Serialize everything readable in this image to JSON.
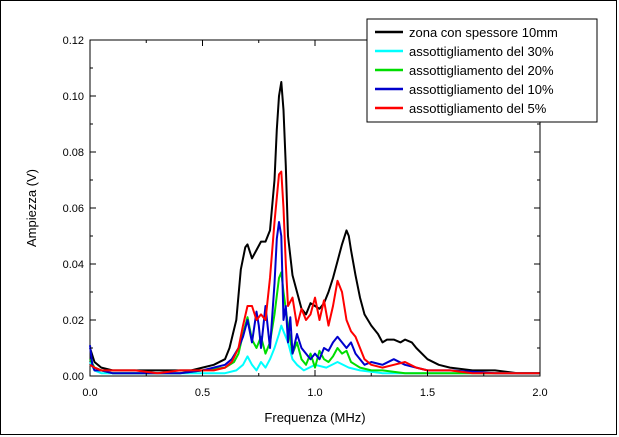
{
  "chart_data": {
    "type": "line",
    "xlabel": "Frequenza (MHz)",
    "ylabel": "Ampiezza (V)",
    "xlim": [
      0.0,
      2.0
    ],
    "ylim": [
      0.0,
      0.12
    ],
    "xticks": [
      "0.0",
      "0.5",
      "1.0",
      "1.5",
      "2.0"
    ],
    "yticks": [
      "0.00",
      "0.02",
      "0.04",
      "0.06",
      "0.08",
      "0.10",
      "0.12"
    ],
    "grid": false,
    "legend_position": "top-right",
    "series": [
      {
        "name": "zona con spessore 10mm",
        "color": "#000000",
        "x": [
          0.0,
          0.02,
          0.05,
          0.1,
          0.15,
          0.2,
          0.3,
          0.4,
          0.45,
          0.5,
          0.55,
          0.6,
          0.62,
          0.65,
          0.67,
          0.69,
          0.7,
          0.72,
          0.74,
          0.76,
          0.78,
          0.8,
          0.82,
          0.83,
          0.84,
          0.85,
          0.86,
          0.87,
          0.88,
          0.9,
          0.92,
          0.94,
          0.96,
          0.98,
          1.0,
          1.02,
          1.04,
          1.06,
          1.08,
          1.1,
          1.12,
          1.14,
          1.15,
          1.16,
          1.18,
          1.2,
          1.22,
          1.25,
          1.28,
          1.3,
          1.32,
          1.35,
          1.38,
          1.4,
          1.43,
          1.45,
          1.5,
          1.55,
          1.6,
          1.7,
          1.8,
          1.9,
          2.0
        ],
        "values": [
          0.01,
          0.005,
          0.003,
          0.002,
          0.002,
          0.002,
          0.002,
          0.002,
          0.002,
          0.003,
          0.004,
          0.006,
          0.01,
          0.02,
          0.038,
          0.046,
          0.047,
          0.042,
          0.045,
          0.048,
          0.048,
          0.052,
          0.07,
          0.088,
          0.1,
          0.105,
          0.095,
          0.075,
          0.05,
          0.036,
          0.03,
          0.024,
          0.022,
          0.026,
          0.025,
          0.024,
          0.026,
          0.03,
          0.035,
          0.041,
          0.047,
          0.052,
          0.05,
          0.045,
          0.036,
          0.028,
          0.022,
          0.018,
          0.015,
          0.012,
          0.013,
          0.013,
          0.012,
          0.013,
          0.012,
          0.01,
          0.006,
          0.004,
          0.003,
          0.002,
          0.002,
          0.001,
          0.001
        ]
      },
      {
        "name": "assottigliamento del 30%",
        "color": "#00ffff",
        "x": [
          0.0,
          0.02,
          0.05,
          0.1,
          0.2,
          0.3,
          0.4,
          0.5,
          0.6,
          0.65,
          0.68,
          0.7,
          0.72,
          0.74,
          0.76,
          0.78,
          0.8,
          0.82,
          0.84,
          0.85,
          0.86,
          0.88,
          0.9,
          0.92,
          0.95,
          1.0,
          1.05,
          1.1,
          1.15,
          1.2,
          1.3,
          1.4,
          1.6,
          1.8,
          2.0
        ],
        "values": [
          0.005,
          0.002,
          0.001,
          0.001,
          0.001,
          0.001,
          0.001,
          0.001,
          0.001,
          0.002,
          0.004,
          0.007,
          0.004,
          0.002,
          0.005,
          0.003,
          0.006,
          0.01,
          0.015,
          0.018,
          0.016,
          0.012,
          0.006,
          0.004,
          0.002,
          0.004,
          0.003,
          0.005,
          0.003,
          0.002,
          0.001,
          0.001,
          0.001,
          0.001,
          0.001
        ]
      },
      {
        "name": "assottigliamento del 20%",
        "color": "#00dd00",
        "x": [
          0.0,
          0.02,
          0.05,
          0.1,
          0.2,
          0.3,
          0.4,
          0.5,
          0.6,
          0.64,
          0.66,
          0.68,
          0.7,
          0.72,
          0.74,
          0.76,
          0.78,
          0.8,
          0.82,
          0.84,
          0.85,
          0.86,
          0.88,
          0.9,
          0.92,
          0.94,
          0.96,
          0.98,
          1.0,
          1.02,
          1.04,
          1.06,
          1.08,
          1.1,
          1.12,
          1.14,
          1.16,
          1.18,
          1.2,
          1.25,
          1.3,
          1.4,
          1.5,
          1.6,
          1.8,
          2.0
        ],
        "values": [
          0.006,
          0.003,
          0.002,
          0.001,
          0.001,
          0.001,
          0.001,
          0.002,
          0.003,
          0.005,
          0.008,
          0.015,
          0.021,
          0.013,
          0.01,
          0.014,
          0.008,
          0.012,
          0.022,
          0.035,
          0.037,
          0.03,
          0.018,
          0.008,
          0.012,
          0.006,
          0.004,
          0.008,
          0.003,
          0.009,
          0.006,
          0.005,
          0.007,
          0.01,
          0.008,
          0.009,
          0.005,
          0.004,
          0.003,
          0.002,
          0.002,
          0.001,
          0.001,
          0.001,
          0.001,
          0.001
        ]
      },
      {
        "name": "assottigliamento del 10%",
        "color": "#0000cc",
        "x": [
          0.0,
          0.01,
          0.02,
          0.05,
          0.1,
          0.2,
          0.3,
          0.4,
          0.5,
          0.6,
          0.63,
          0.66,
          0.68,
          0.7,
          0.72,
          0.74,
          0.75,
          0.76,
          0.78,
          0.8,
          0.82,
          0.83,
          0.84,
          0.85,
          0.86,
          0.87,
          0.88,
          0.89,
          0.9,
          0.92,
          0.94,
          0.96,
          0.98,
          1.0,
          1.02,
          1.04,
          1.06,
          1.08,
          1.1,
          1.12,
          1.14,
          1.16,
          1.18,
          1.2,
          1.22,
          1.25,
          1.3,
          1.35,
          1.4,
          1.45,
          1.5,
          1.6,
          1.8,
          2.0
        ],
        "values": [
          0.011,
          0.004,
          0.002,
          0.002,
          0.001,
          0.001,
          0.001,
          0.001,
          0.002,
          0.004,
          0.006,
          0.01,
          0.014,
          0.02,
          0.012,
          0.023,
          0.018,
          0.01,
          0.025,
          0.01,
          0.033,
          0.049,
          0.055,
          0.05,
          0.02,
          0.025,
          0.012,
          0.021,
          0.008,
          0.015,
          0.01,
          0.008,
          0.006,
          0.008,
          0.006,
          0.01,
          0.009,
          0.012,
          0.014,
          0.012,
          0.01,
          0.012,
          0.008,
          0.006,
          0.004,
          0.005,
          0.004,
          0.006,
          0.004,
          0.003,
          0.002,
          0.002,
          0.001,
          0.001
        ]
      },
      {
        "name": "assottigliamento del 5%",
        "color": "#ff0000",
        "x": [
          0.0,
          0.02,
          0.05,
          0.1,
          0.2,
          0.3,
          0.4,
          0.5,
          0.55,
          0.6,
          0.63,
          0.66,
          0.68,
          0.7,
          0.72,
          0.74,
          0.76,
          0.78,
          0.8,
          0.82,
          0.84,
          0.85,
          0.86,
          0.87,
          0.88,
          0.9,
          0.92,
          0.94,
          0.96,
          0.98,
          1.0,
          1.02,
          1.04,
          1.06,
          1.08,
          1.1,
          1.12,
          1.14,
          1.16,
          1.18,
          1.2,
          1.22,
          1.25,
          1.3,
          1.35,
          1.4,
          1.45,
          1.5,
          1.6,
          1.7,
          1.8,
          2.0
        ],
        "values": [
          0.004,
          0.003,
          0.002,
          0.002,
          0.002,
          0.001,
          0.002,
          0.002,
          0.002,
          0.003,
          0.005,
          0.01,
          0.018,
          0.025,
          0.025,
          0.02,
          0.022,
          0.02,
          0.035,
          0.055,
          0.072,
          0.073,
          0.06,
          0.04,
          0.025,
          0.028,
          0.018,
          0.024,
          0.02,
          0.022,
          0.028,
          0.02,
          0.027,
          0.018,
          0.025,
          0.034,
          0.03,
          0.02,
          0.016,
          0.014,
          0.01,
          0.006,
          0.004,
          0.003,
          0.004,
          0.005,
          0.003,
          0.002,
          0.002,
          0.001,
          0.001,
          0.001
        ]
      }
    ]
  }
}
